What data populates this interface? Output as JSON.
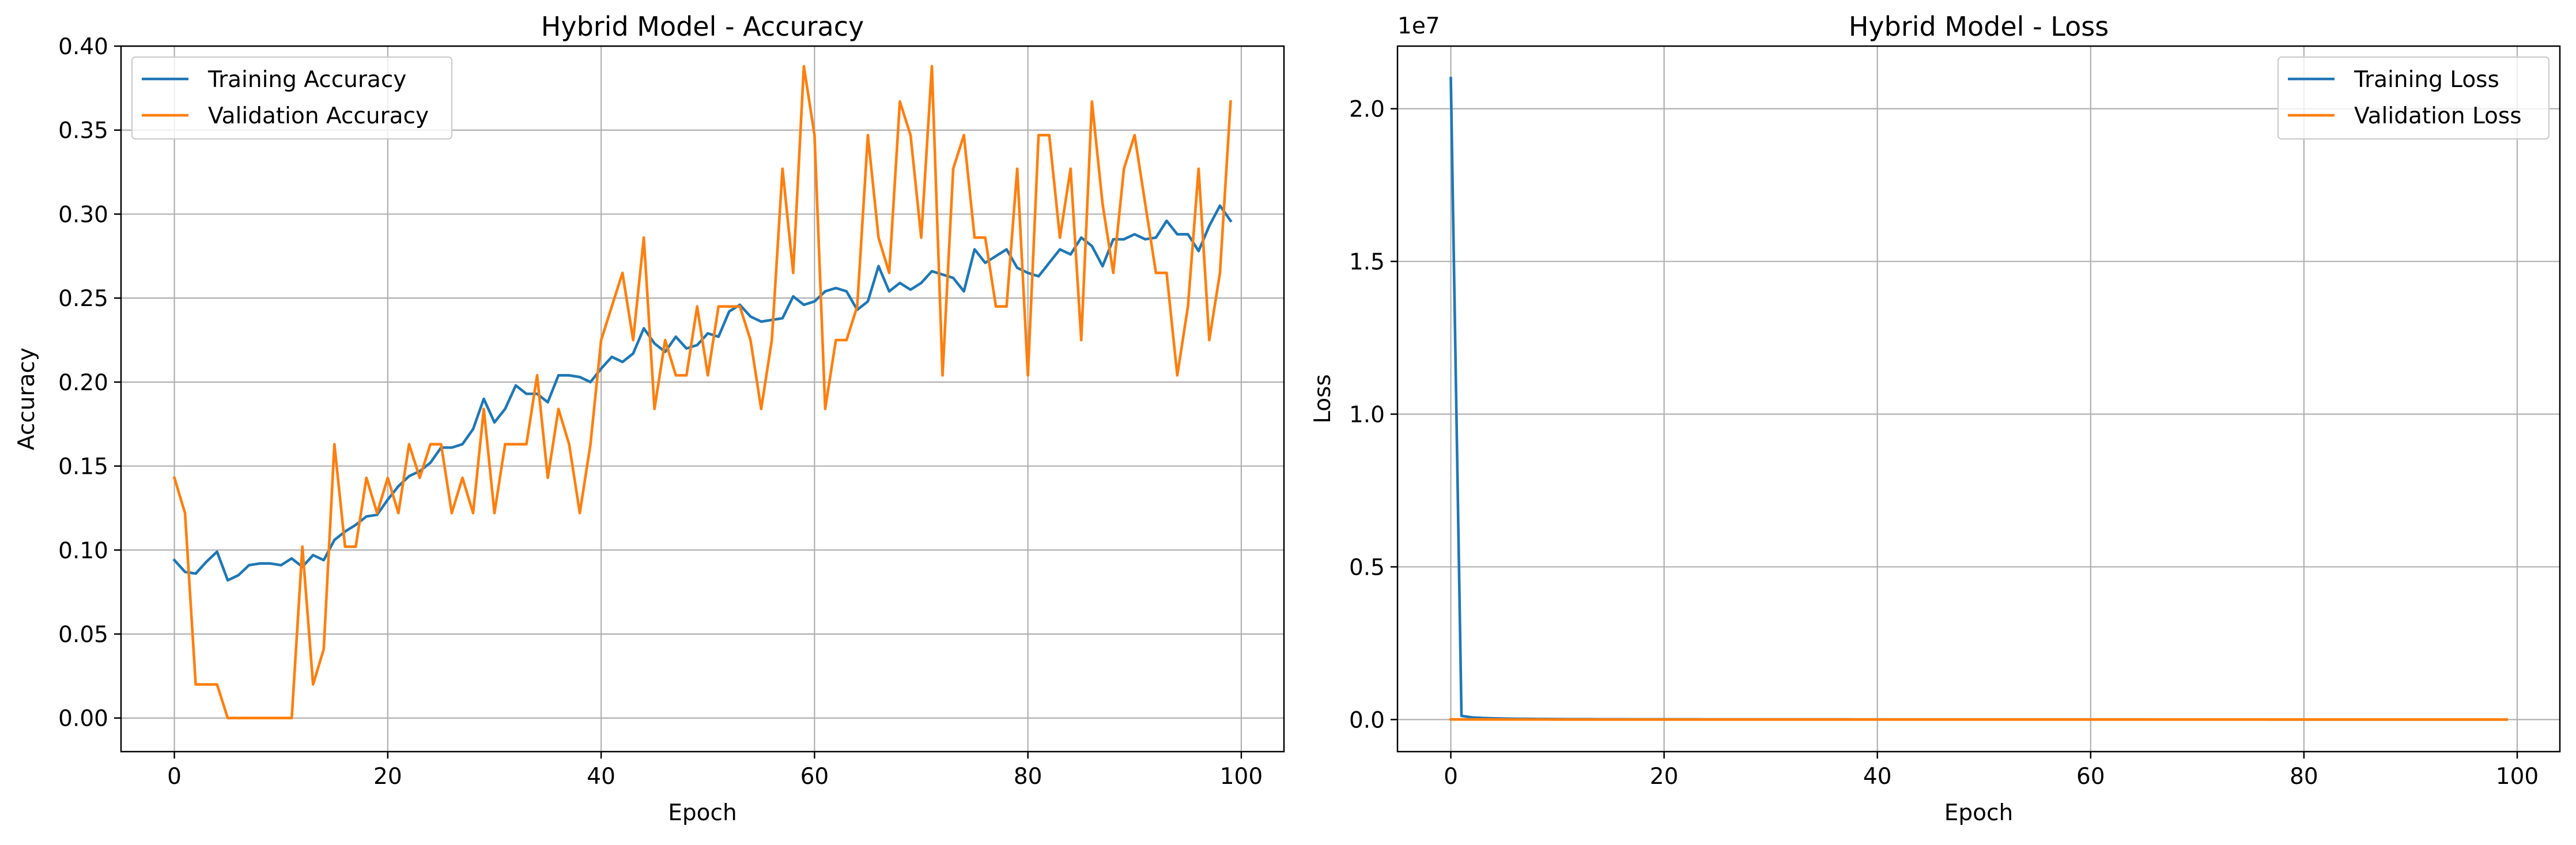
{
  "chart_data": [
    {
      "type": "line",
      "title": "Hybrid Model - Accuracy",
      "xlabel": "Epoch",
      "ylabel": "Accuracy",
      "xlim": [
        -5,
        104
      ],
      "ylim": [
        -0.02,
        0.4
      ],
      "xticks": [
        0,
        20,
        40,
        60,
        80,
        100
      ],
      "xtick_labels": [
        "0",
        "20",
        "40",
        "60",
        "80",
        "100"
      ],
      "yticks": [
        0.0,
        0.05,
        0.1,
        0.15,
        0.2,
        0.25,
        0.3,
        0.35,
        0.4
      ],
      "ytick_labels": [
        "0.00",
        "0.05",
        "0.10",
        "0.15",
        "0.20",
        "0.25",
        "0.30",
        "0.35",
        "0.40"
      ],
      "grid": true,
      "legend_position": "top-left",
      "series": [
        {
          "name": "Training Accuracy",
          "color": "#1f77b4",
          "values": [
            0.094,
            0.087,
            0.086,
            0.093,
            0.099,
            0.082,
            0.085,
            0.091,
            0.092,
            0.092,
            0.091,
            0.095,
            0.09,
            0.097,
            0.094,
            0.106,
            0.111,
            0.115,
            0.12,
            0.121,
            0.13,
            0.138,
            0.144,
            0.147,
            0.152,
            0.161,
            0.161,
            0.163,
            0.172,
            0.19,
            0.176,
            0.184,
            0.198,
            0.193,
            0.193,
            0.188,
            0.204,
            0.204,
            0.203,
            0.2,
            0.208,
            0.215,
            0.212,
            0.217,
            0.232,
            0.223,
            0.218,
            0.227,
            0.22,
            0.222,
            0.229,
            0.227,
            0.242,
            0.246,
            0.239,
            0.236,
            0.237,
            0.238,
            0.251,
            0.246,
            0.248,
            0.254,
            0.256,
            0.254,
            0.243,
            0.248,
            0.269,
            0.254,
            0.259,
            0.255,
            0.259,
            0.266,
            0.264,
            0.262,
            0.254,
            0.279,
            0.271,
            0.275,
            0.279,
            0.268,
            0.265,
            0.263,
            0.271,
            0.279,
            0.276,
            0.286,
            0.281,
            0.269,
            0.285,
            0.285,
            0.288,
            0.285,
            0.286,
            0.296,
            0.288,
            0.288,
            0.278,
            0.293,
            0.305,
            0.296
          ]
        },
        {
          "name": "Validation Accuracy",
          "color": "#ff7f0e",
          "values": [
            0.143,
            0.122,
            0.02,
            0.02,
            0.02,
            0.0,
            0.0,
            0.0,
            0.0,
            0.0,
            0.0,
            0.0,
            0.102,
            0.02,
            0.041,
            0.163,
            0.102,
            0.102,
            0.143,
            0.122,
            0.143,
            0.122,
            0.163,
            0.143,
            0.163,
            0.163,
            0.122,
            0.143,
            0.122,
            0.184,
            0.122,
            0.163,
            0.163,
            0.163,
            0.204,
            0.143,
            0.184,
            0.163,
            0.122,
            0.163,
            0.225,
            0.245,
            0.265,
            0.225,
            0.286,
            0.184,
            0.225,
            0.204,
            0.204,
            0.245,
            0.204,
            0.245,
            0.245,
            0.245,
            0.225,
            0.184,
            0.225,
            0.327,
            0.265,
            0.388,
            0.347,
            0.184,
            0.225,
            0.225,
            0.245,
            0.347,
            0.286,
            0.265,
            0.367,
            0.347,
            0.286,
            0.388,
            0.204,
            0.327,
            0.347,
            0.286,
            0.286,
            0.245,
            0.245,
            0.327,
            0.204,
            0.347,
            0.347,
            0.286,
            0.327,
            0.225,
            0.367,
            0.306,
            0.265,
            0.327,
            0.347,
            0.306,
            0.265,
            0.265,
            0.204,
            0.245,
            0.327,
            0.225,
            0.265,
            0.367
          ]
        }
      ]
    },
    {
      "type": "line",
      "title": "Hybrid Model - Loss",
      "xlabel": "Epoch",
      "ylabel": "Loss",
      "sci_label": "1e7",
      "xlim": [
        -5,
        104
      ],
      "ylim": [
        -1050000,
        22050000
      ],
      "xticks": [
        0,
        20,
        40,
        60,
        80,
        100
      ],
      "xtick_labels": [
        "0",
        "20",
        "40",
        "60",
        "80",
        "100"
      ],
      "yticks": [
        0,
        5000000,
        10000000,
        15000000,
        20000000
      ],
      "ytick_labels": [
        "0.0",
        "0.5",
        "1.0",
        "1.5",
        "2.0"
      ],
      "grid": true,
      "legend_position": "top-right",
      "series": [
        {
          "name": "Training Loss",
          "color": "#1f77b4",
          "values": [
            21000000,
            120000,
            70000,
            50000,
            40000,
            32000,
            26000,
            22000,
            19000,
            17000,
            15000,
            14000,
            13000,
            12000,
            11000,
            10000,
            9500,
            9000,
            8500,
            8000,
            7800,
            7600,
            7400,
            7200,
            7000,
            6800,
            6600,
            6400,
            6200,
            6000,
            5800,
            5600,
            5400,
            5200,
            5000,
            4900,
            4800,
            4700,
            4600,
            4500,
            4400,
            4300,
            4200,
            4100,
            4000,
            3900,
            3800,
            3700,
            3600,
            3500,
            3400,
            3300,
            3200,
            3100,
            3000,
            2950,
            2900,
            2850,
            2800,
            2750,
            2700,
            2650,
            2600,
            2550,
            2500,
            2450,
            2400,
            2350,
            2300,
            2250,
            2200,
            2150,
            2100,
            2050,
            2000,
            1950,
            1900,
            1850,
            1800,
            1750,
            1700,
            1650,
            1600,
            1550,
            1500,
            1450,
            1400,
            1350,
            1300,
            1250,
            1200,
            1150,
            1100,
            1050,
            1000,
            950,
            900,
            850,
            800,
            750
          ]
        },
        {
          "name": "Validation Loss",
          "color": "#ff7f0e",
          "values": [
            5000,
            4000,
            3500,
            3000,
            2800,
            2600,
            2400,
            2200,
            2000,
            1900,
            1800,
            1700,
            1600,
            1500,
            1400,
            1300,
            1200,
            1100,
            1000,
            950,
            900,
            850,
            800,
            750,
            700,
            650,
            600,
            550,
            500,
            480,
            460,
            440,
            420,
            400,
            380,
            360,
            340,
            320,
            300,
            290,
            280,
            270,
            260,
            250,
            240,
            230,
            220,
            210,
            200,
            190,
            180,
            170,
            160,
            150,
            140,
            130,
            120,
            110,
            100,
            95,
            90,
            85,
            80,
            75,
            70,
            65,
            60,
            55,
            50,
            48,
            46,
            44,
            42,
            40,
            38,
            36,
            34,
            32,
            30,
            28,
            26,
            24,
            22,
            20,
            18,
            16,
            14,
            12,
            10,
            9,
            8,
            7,
            6,
            5,
            4,
            3,
            2,
            2,
            1,
            1
          ]
        }
      ]
    }
  ]
}
